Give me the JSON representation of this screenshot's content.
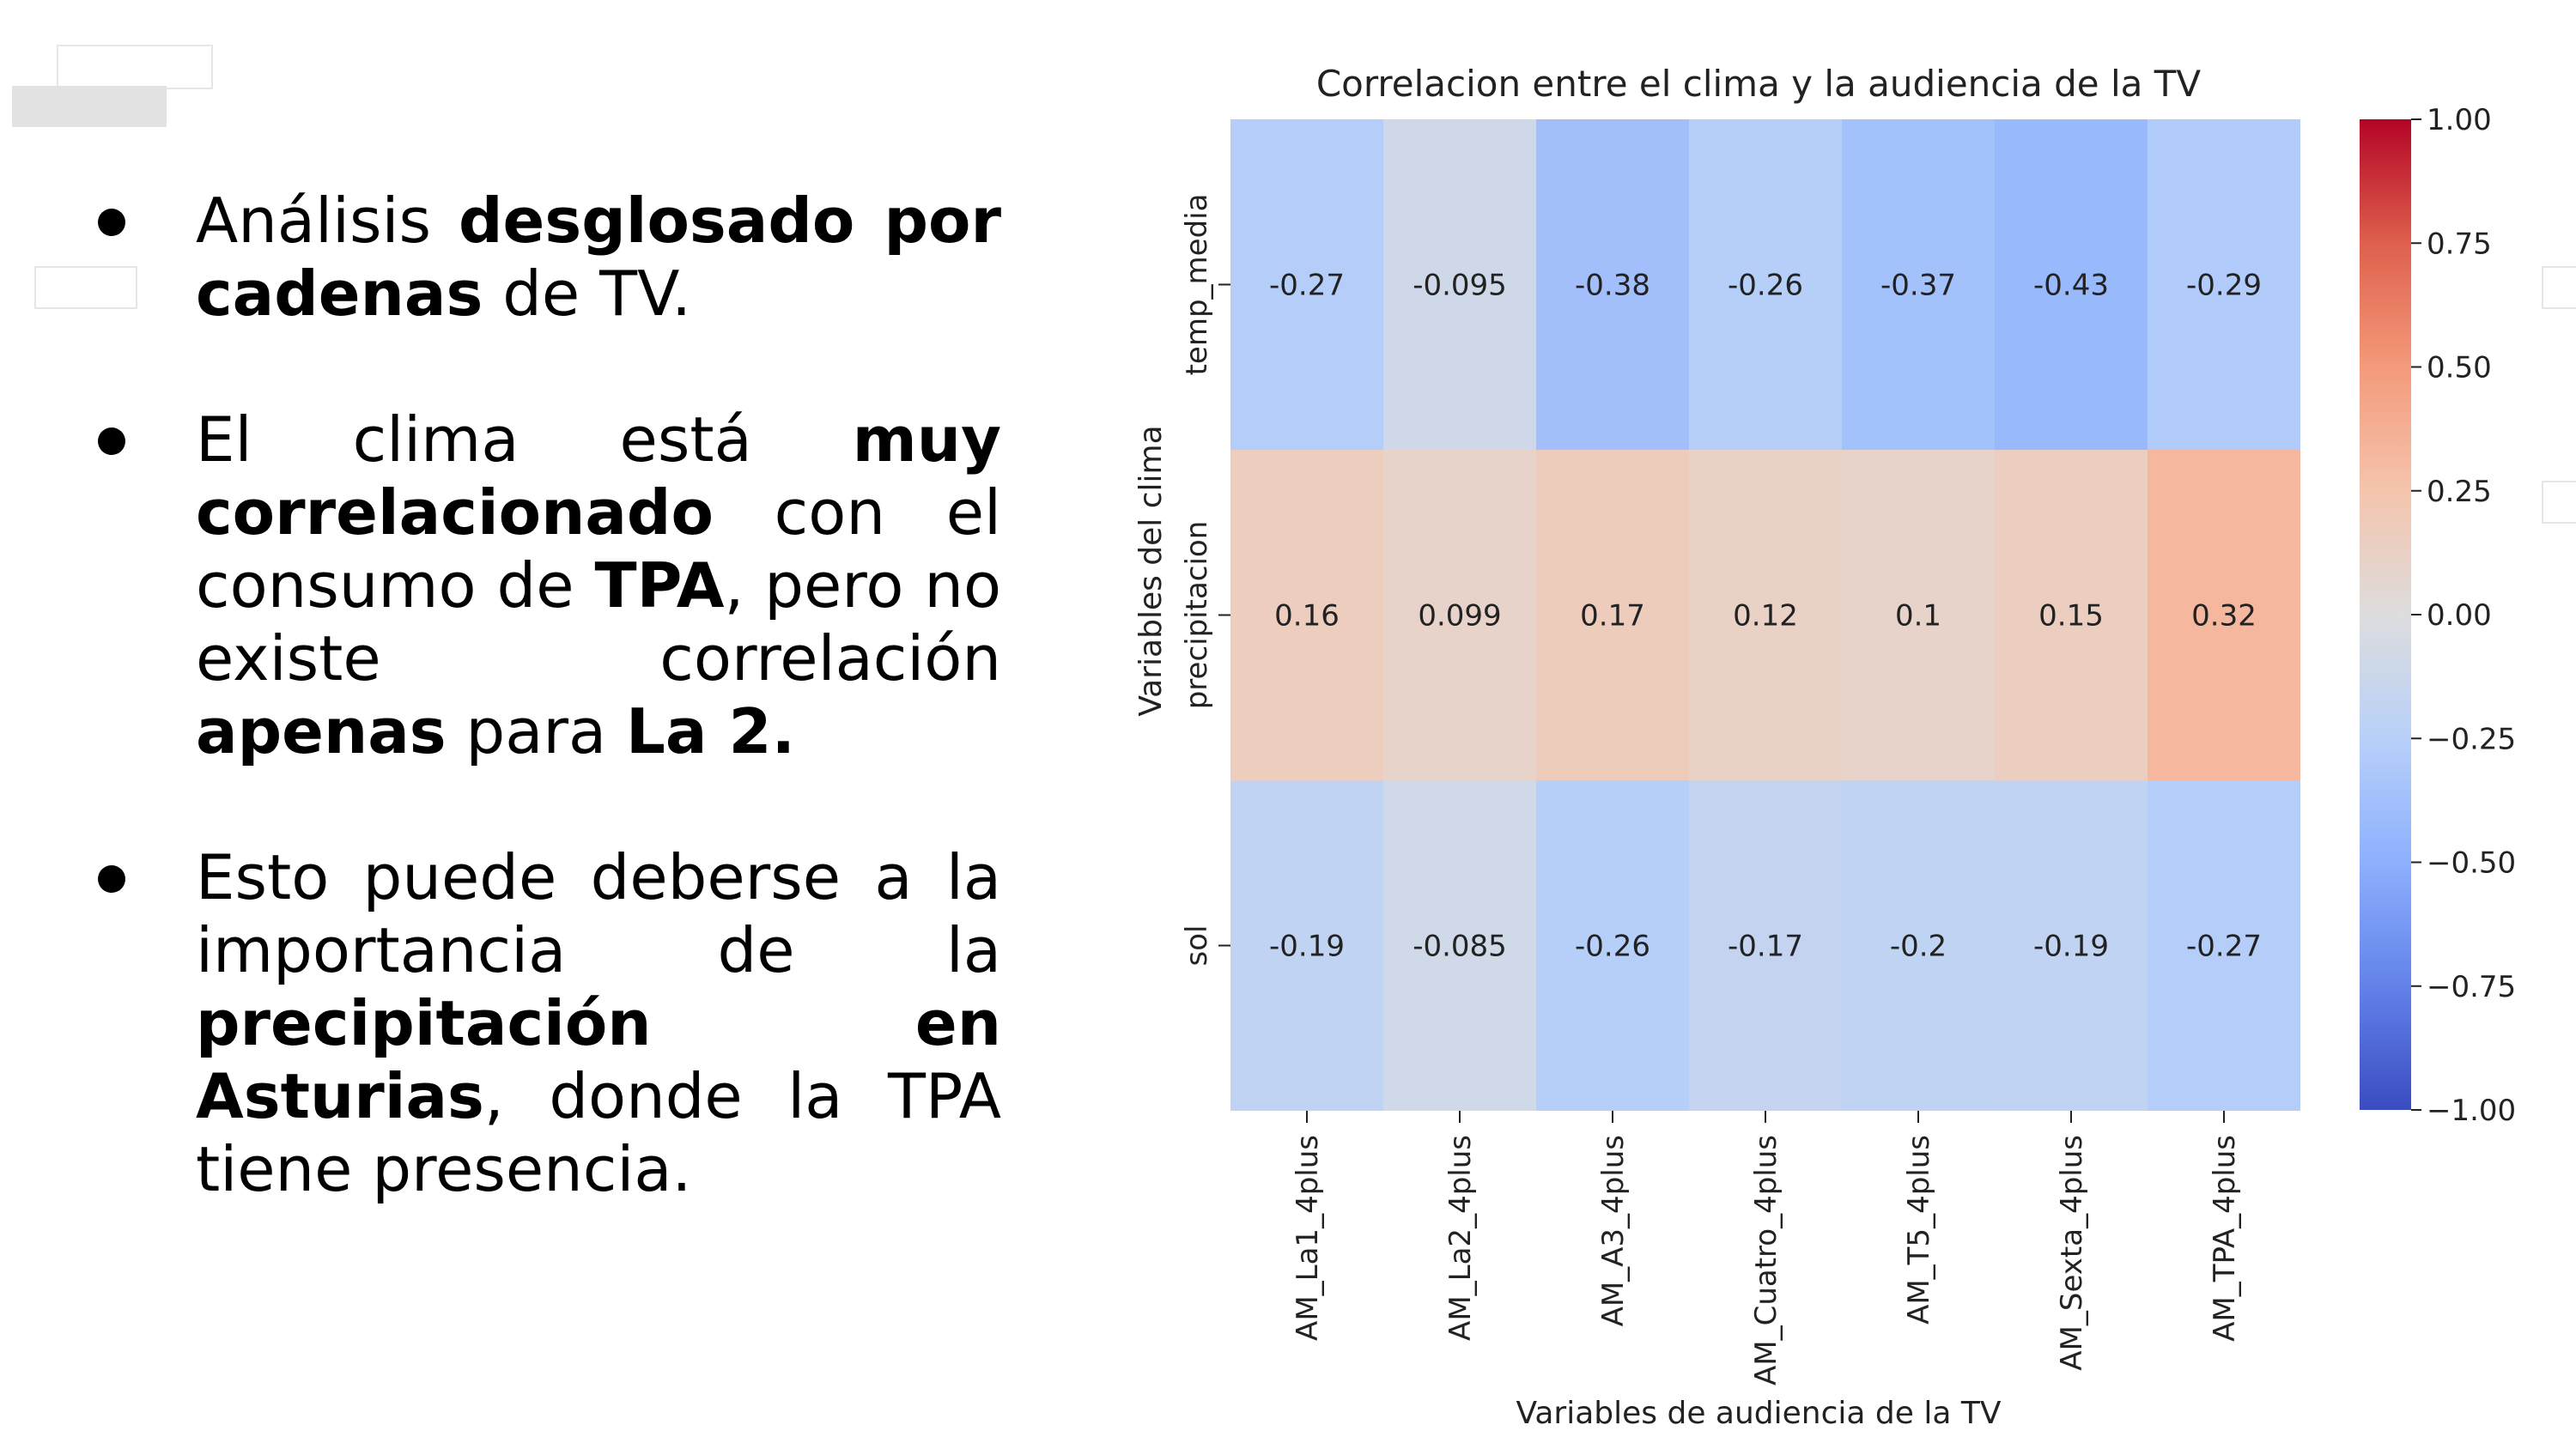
{
  "slide": {
    "bullets": [
      {
        "segments": [
          {
            "text": "Análisis ",
            "bold": false
          },
          {
            "text": "desglosado por cadenas",
            "bold": true
          },
          {
            "text": " de TV.",
            "bold": false
          }
        ]
      },
      {
        "segments": [
          {
            "text": "El clima está ",
            "bold": false
          },
          {
            "text": "muy correlacionado",
            "bold": true
          },
          {
            "text": " con el consumo de ",
            "bold": false
          },
          {
            "text": "TPA",
            "bold": true
          },
          {
            "text": ", pero no existe correlación ",
            "bold": false
          },
          {
            "text": "apenas",
            "bold": true
          },
          {
            "text": " para ",
            "bold": false
          },
          {
            "text": "La 2.",
            "bold": true
          }
        ]
      },
      {
        "segments": [
          {
            "text": "Esto puede deberse a la importancia de la ",
            "bold": false
          },
          {
            "text": "precipitación en Asturias",
            "bold": true
          },
          {
            "text": ", donde la TPA tiene presencia.",
            "bold": false
          }
        ]
      }
    ]
  },
  "chart_data": {
    "type": "heatmap",
    "title": "Correlacion entre el clima y la audiencia de la TV",
    "xlabel": "Variables de audiencia de la TV",
    "ylabel": "Variables del clima",
    "x_categories": [
      "AM_La1_4plus",
      "AM_La2_4plus",
      "AM_A3_4plus",
      "AM_Cuatro_4plus",
      "AM_T5_4plus",
      "AM_Sexta_4plus",
      "AM_TPA_4plus"
    ],
    "y_categories": [
      "temp_media",
      "precipitacion",
      "sol"
    ],
    "values": [
      [
        -0.27,
        -0.095,
        -0.38,
        -0.26,
        -0.37,
        -0.43,
        -0.29
      ],
      [
        0.16,
        0.099,
        0.17,
        0.12,
        0.1,
        0.15,
        0.32
      ],
      [
        -0.19,
        -0.085,
        -0.26,
        -0.17,
        -0.2,
        -0.19,
        -0.27
      ]
    ],
    "value_labels": [
      [
        "-0.27",
        "-0.095",
        "-0.38",
        "-0.26",
        "-0.37",
        "-0.43",
        "-0.29"
      ],
      [
        "0.16",
        "0.099",
        "0.17",
        "0.12",
        "0.1",
        "0.15",
        "0.32"
      ],
      [
        "-0.19",
        "-0.085",
        "-0.26",
        "-0.17",
        "-0.2",
        "-0.19",
        "-0.27"
      ]
    ],
    "colormap": "coolwarm",
    "vmin": -1.0,
    "vmax": 1.0,
    "colorbar_ticks": [
      "1.00",
      "0.75",
      "0.50",
      "0.25",
      "0.00",
      "−0.25",
      "−0.50",
      "−0.75",
      "−1.00"
    ],
    "colorbar_tick_values": [
      1.0,
      0.75,
      0.5,
      0.25,
      0.0,
      -0.25,
      -0.5,
      -0.75,
      -1.0
    ]
  }
}
